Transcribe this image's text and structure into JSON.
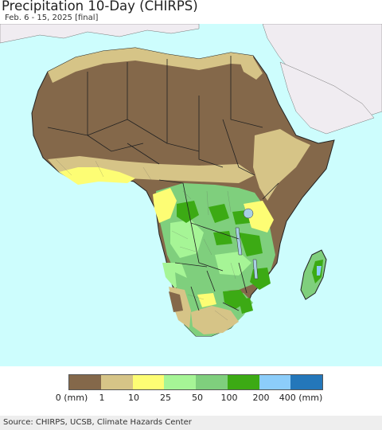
{
  "header": {
    "title": "Precipitation 10-Day (CHIRPS)",
    "subtitle": "Feb. 6 - 15, 2025 [final]"
  },
  "legend": {
    "categories": [
      {
        "color": "#84684a"
      },
      {
        "color": "#d6c487"
      },
      {
        "color": "#fdfd74"
      },
      {
        "color": "#a6f596"
      },
      {
        "color": "#7fcf7d"
      },
      {
        "color": "#3caa14"
      },
      {
        "color": "#8ccdfa"
      },
      {
        "color": "#2477ba"
      }
    ],
    "ticks": [
      "0 (mm)",
      "1",
      "10",
      "25",
      "50",
      "100",
      "200",
      "400 (mm)"
    ]
  },
  "footer": {
    "source": "Source: CHIRPS, UCSB, Climate Hazards Center"
  },
  "colors": {
    "ocean": "#cdfdfd",
    "outside_land": "#f0ecf1",
    "dry": "#84684a",
    "very_low": "#d6c487",
    "low": "#fdfd74",
    "moderate": "#a6f596",
    "wet": "#7fcf7d",
    "very_wet": "#3caa14",
    "extreme": "#8ccdfa",
    "lake": "#a7cfe4"
  }
}
